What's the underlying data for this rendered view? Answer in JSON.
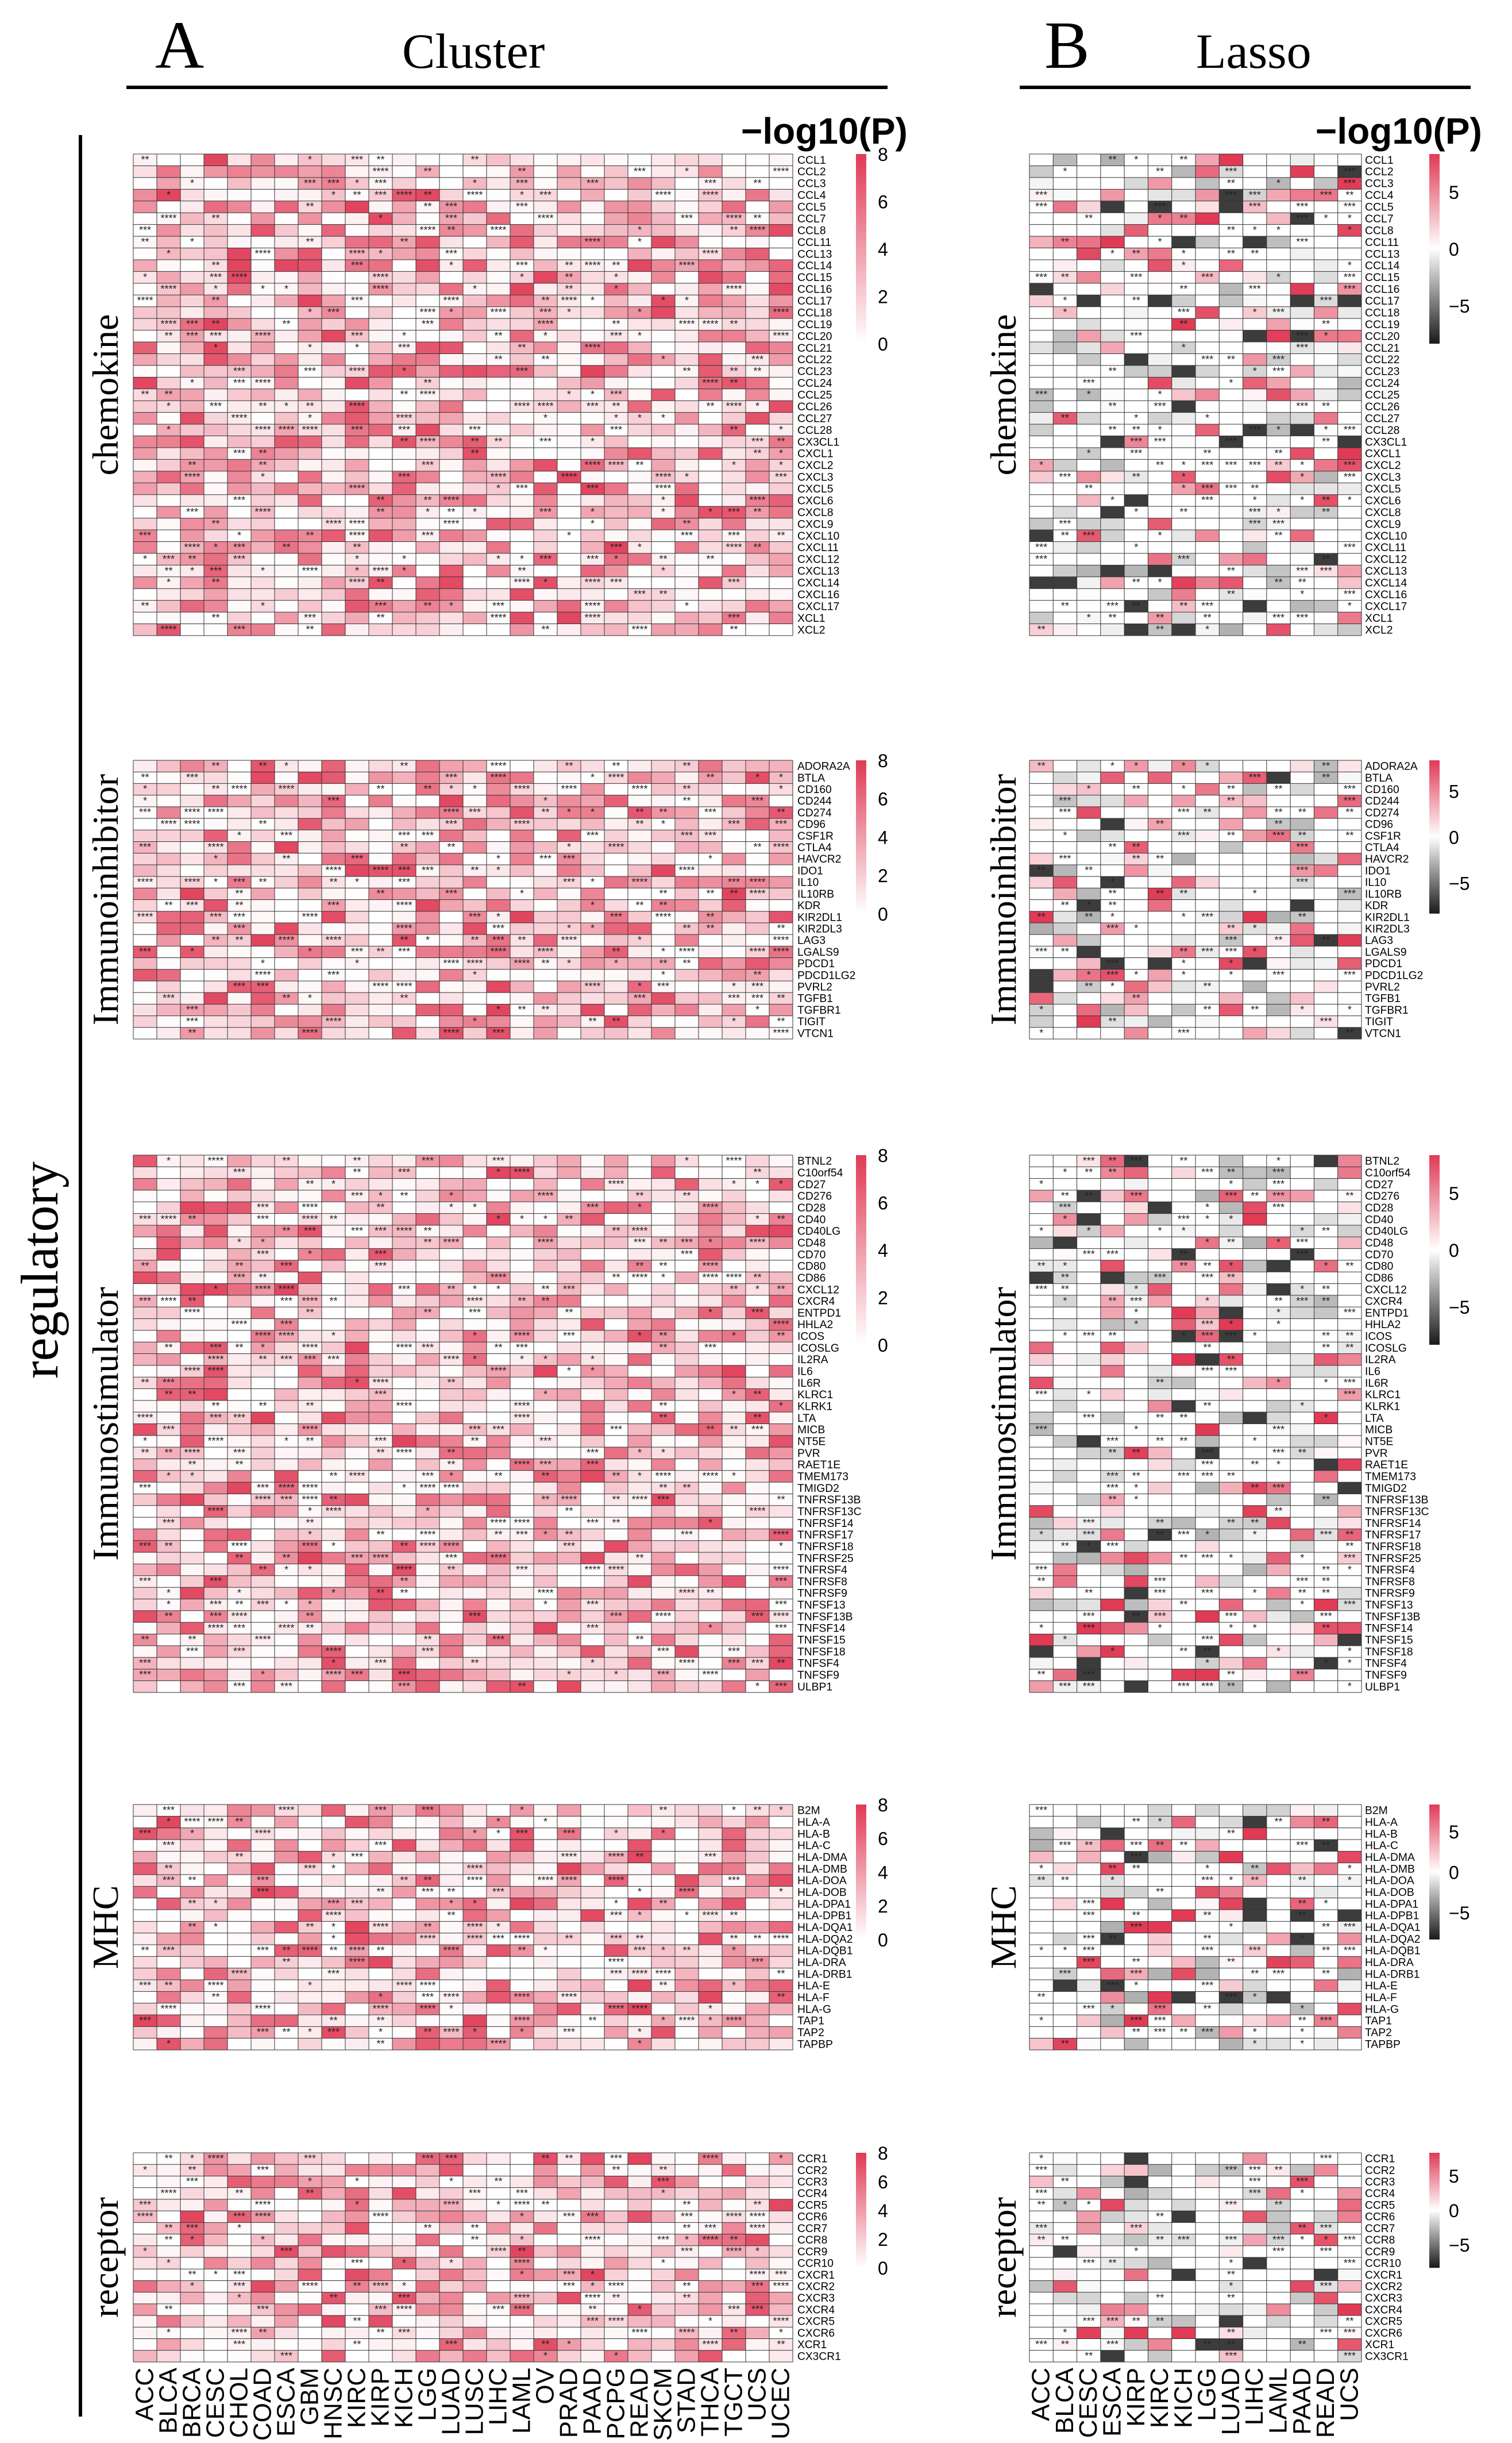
{
  "header": {
    "left_letter": "A",
    "left_title": "Cluster",
    "right_letter": "B",
    "right_title": "Lasso",
    "side_label": "regulatory"
  },
  "legend": {
    "title": "−log10(P)"
  },
  "chart_data": [
    {
      "type": "heatmap",
      "method": "Cluster",
      "category": "chemokine",
      "rows": [
        "CCL1",
        "CCL2",
        "CCL3",
        "CCL4",
        "CCL5",
        "CCL7",
        "CCL8",
        "CCL11",
        "CCL13",
        "CCL14",
        "CCL15",
        "CCL16",
        "CCL17",
        "CCL18",
        "CCL19",
        "CCL20",
        "CCL21",
        "CCL22",
        "CCL23",
        "CCL24",
        "CCL25",
        "CCL26",
        "CCL27",
        "CCL28",
        "CX3CL1",
        "CXCL1",
        "CXCL2",
        "CXCL3",
        "CXCL5",
        "CXCL6",
        "CXCL8",
        "CXCL9",
        "CXCL10",
        "CXCL11",
        "CXCL12",
        "CXCL13",
        "CXCL14",
        "CXCL16",
        "CXCL17",
        "XCL1",
        "XCL2"
      ],
      "colorbar": {
        "min": 0,
        "max": 8,
        "ticks": [
          "8",
          "6",
          "4",
          "2",
          "0"
        ],
        "palette": "white-to-red"
      },
      "significance_marks": [
        "*",
        "**",
        "***",
        "****"
      ]
    },
    {
      "type": "heatmap",
      "method": "Cluster",
      "category": "Immunoinhibitor",
      "rows": [
        "ADORA2A",
        "BTLA",
        "CD160",
        "CD244",
        "CD274",
        "CD96",
        "CSF1R",
        "CTLA4",
        "HAVCR2",
        "IDO1",
        "IL10",
        "IL10RB",
        "KDR",
        "KIR2DL1",
        "KIR2DL3",
        "LAG3",
        "LGALS9",
        "PDCD1",
        "PDCD1LG2",
        "PVRL2",
        "TGFB1",
        "TGFBR1",
        "TIGIT",
        "VTCN1"
      ],
      "colorbar": {
        "min": 0,
        "max": 8,
        "ticks": [
          "8",
          "6",
          "4",
          "2",
          "0"
        ],
        "palette": "white-to-red"
      }
    },
    {
      "type": "heatmap",
      "method": "Cluster",
      "category": "Immunostimulator",
      "rows": [
        "BTNL2",
        "C10orf54",
        "CD27",
        "CD276",
        "CD28",
        "CD40",
        "CD40LG",
        "CD48",
        "CD70",
        "CD80",
        "CD86",
        "CXCL12",
        "CXCR4",
        "ENTPD1",
        "HHLA2",
        "ICOS",
        "ICOSLG",
        "IL2RA",
        "IL6",
        "IL6R",
        "KLRC1",
        "KLRK1",
        "LTA",
        "MICB",
        "NT5E",
        "PVR",
        "RAET1E",
        "TMEM173",
        "TMIGD2",
        "TNFRSF13B",
        "TNFRSF13C",
        "TNFRSF14",
        "TNFRSF17",
        "TNFRSF18",
        "TNFRSF25",
        "TNFRSF4",
        "TNFRSF8",
        "TNFRSF9",
        "TNFSF13",
        "TNFSF13B",
        "TNFSF14",
        "TNFSF15",
        "TNFSF18",
        "TNFSF4",
        "TNFSF9",
        "ULBP1"
      ],
      "colorbar": {
        "min": 0,
        "max": 8,
        "ticks": [
          "8",
          "6",
          "4",
          "2",
          "0"
        ],
        "palette": "white-to-red"
      }
    },
    {
      "type": "heatmap",
      "method": "Cluster",
      "category": "MHC",
      "rows": [
        "B2M",
        "HLA-A",
        "HLA-B",
        "HLA-C",
        "HLA-DMA",
        "HLA-DMB",
        "HLA-DOA",
        "HLA-DOB",
        "HLA-DPA1",
        "HLA-DPB1",
        "HLA-DQA1",
        "HLA-DQA2",
        "HLA-DQB1",
        "HLA-DRA",
        "HLA-DRB1",
        "HLA-E",
        "HLA-F",
        "HLA-G",
        "TAP1",
        "TAP2",
        "TAPBP"
      ],
      "colorbar": {
        "min": 0,
        "max": 8,
        "ticks": [
          "8",
          "6",
          "4",
          "2",
          "0"
        ],
        "palette": "white-to-red"
      }
    },
    {
      "type": "heatmap",
      "method": "Cluster",
      "category": "receptor",
      "rows": [
        "CCR1",
        "CCR2",
        "CCR3",
        "CCR4",
        "CCR5",
        "CCR6",
        "CCR7",
        "CCR8",
        "CCR9",
        "CCR10",
        "CXCR1",
        "CXCR2",
        "CXCR3",
        "CXCR4",
        "CXCR5",
        "CXCR6",
        "XCR1",
        "CX3CR1"
      ],
      "columns": [
        "ACC",
        "BLCA",
        "BRCA",
        "CESC",
        "CHOL",
        "COAD",
        "ESCA",
        "GBM",
        "HNSC",
        "KIRC",
        "KIRP",
        "KICH",
        "LGG",
        "LUAD",
        "LUSC",
        "LIHC",
        "LAML",
        "OV",
        "PRAD",
        "PAAD",
        "PCPG",
        "READ",
        "SKCM",
        "STAD",
        "THCA",
        "TGCT",
        "UCS",
        "UCEC"
      ],
      "colorbar": {
        "min": 0,
        "max": 8,
        "ticks": [
          "8",
          "6",
          "4",
          "2",
          "0"
        ],
        "palette": "white-to-red"
      }
    },
    {
      "type": "heatmap",
      "method": "Lasso",
      "category": "chemokine",
      "rows": [
        "CCL1",
        "CCL2",
        "CCL3",
        "CCL4",
        "CCL5",
        "CCL7",
        "CCL8",
        "CCL11",
        "CCL13",
        "CCL14",
        "CCL15",
        "CCL16",
        "CCL17",
        "CCL18",
        "CCL19",
        "CCL20",
        "CCL21",
        "CCL22",
        "CCL23",
        "CCL24",
        "CCL25",
        "CCL26",
        "CCL27",
        "CCL28",
        "CX3CL1",
        "CXCL1",
        "CXCL2",
        "CXCL3",
        "CXCL5",
        "CXCL6",
        "CXCL8",
        "CXCL9",
        "CXCL10",
        "CXCL11",
        "CXCL12",
        "CXCL13",
        "CXCL14",
        "CXCL16",
        "CXCL17",
        "XCL1",
        "XCL2"
      ],
      "colorbar": {
        "min": -8,
        "max": 8,
        "ticks": [
          "5",
          "0",
          "−5"
        ],
        "palette": "black-white-red"
      }
    },
    {
      "type": "heatmap",
      "method": "Lasso",
      "category": "Immunoinhibitor",
      "rows": [
        "ADORA2A",
        "BTLA",
        "CD160",
        "CD244",
        "CD274",
        "CD96",
        "CSF1R",
        "CTLA4",
        "HAVCR2",
        "IDO1",
        "IL10",
        "IL10RB",
        "KDR",
        "KIR2DL1",
        "KIR2DL3",
        "LAG3",
        "LGALS9",
        "PDCD1",
        "PDCD1LG2",
        "PVRL2",
        "TGFB1",
        "TGFBR1",
        "TIGIT",
        "VTCN1"
      ],
      "colorbar": {
        "min": -8,
        "max": 8,
        "ticks": [
          "5",
          "0",
          "−5"
        ],
        "palette": "black-white-red"
      }
    },
    {
      "type": "heatmap",
      "method": "Lasso",
      "category": "Immunostimulator",
      "rows": [
        "BTNL2",
        "C10orf54",
        "CD27",
        "CD276",
        "CD28",
        "CD40",
        "CD40LG",
        "CD48",
        "CD70",
        "CD80",
        "CD86",
        "CXCL12",
        "CXCR4",
        "ENTPD1",
        "HHLA2",
        "ICOS",
        "ICOSLG",
        "IL2RA",
        "IL6",
        "IL6R",
        "KLRC1",
        "KLRK1",
        "LTA",
        "MICB",
        "NT5E",
        "PVR",
        "RAET1E",
        "TMEM173",
        "TMIGD2",
        "TNFRSF13B",
        "TNFRSF13C",
        "TNFRSF14",
        "TNFRSF17",
        "TNFRSF18",
        "TNFRSF25",
        "TNFRSF4",
        "TNFRSF8",
        "TNFRSF9",
        "TNFSF13",
        "TNFSF13B",
        "TNFSF14",
        "TNFSF15",
        "TNFSF18",
        "TNFSF4",
        "TNFSF9",
        "ULBP1"
      ],
      "colorbar": {
        "min": -8,
        "max": 8,
        "ticks": [
          "5",
          "0",
          "−5"
        ],
        "palette": "black-white-red"
      }
    },
    {
      "type": "heatmap",
      "method": "Lasso",
      "category": "MHC",
      "rows": [
        "B2M",
        "HLA-A",
        "HLA-B",
        "HLA-C",
        "HLA-DMA",
        "HLA-DMB",
        "HLA-DOA",
        "HLA-DOB",
        "HLA-DPA1",
        "HLA-DPB1",
        "HLA-DQA1",
        "HLA-DQA2",
        "HLA-DQB1",
        "HLA-DRA",
        "HLA-DRB1",
        "HLA-E",
        "HLA-F",
        "HLA-G",
        "TAP1",
        "TAP2",
        "TAPBP"
      ],
      "colorbar": {
        "min": -8,
        "max": 8,
        "ticks": [
          "5",
          "0",
          "−5"
        ],
        "palette": "black-white-red"
      }
    },
    {
      "type": "heatmap",
      "method": "Lasso",
      "category": "receptor",
      "rows": [
        "CCR1",
        "CCR2",
        "CCR3",
        "CCR4",
        "CCR5",
        "CCR6",
        "CCR7",
        "CCR8",
        "CCR9",
        "CCR10",
        "CXCR1",
        "CXCR2",
        "CXCR3",
        "CXCR4",
        "CXCR5",
        "CXCR6",
        "XCR1",
        "CX3CR1"
      ],
      "columns": [
        "ACC",
        "BLCA",
        "CESC",
        "ESCA",
        "KIRP",
        "KIRC",
        "KICH",
        "LGG",
        "LUAD",
        "LIHC",
        "LAML",
        "PAAD",
        "READ",
        "UCS"
      ],
      "colorbar": {
        "min": -8,
        "max": 8,
        "ticks": [
          "5",
          "0",
          "−5"
        ],
        "palette": "black-white-red"
      }
    }
  ],
  "colors": {
    "red": "#e03a55",
    "black": "#1a1a1a",
    "white": "#ffffff",
    "grid": "#222222"
  }
}
